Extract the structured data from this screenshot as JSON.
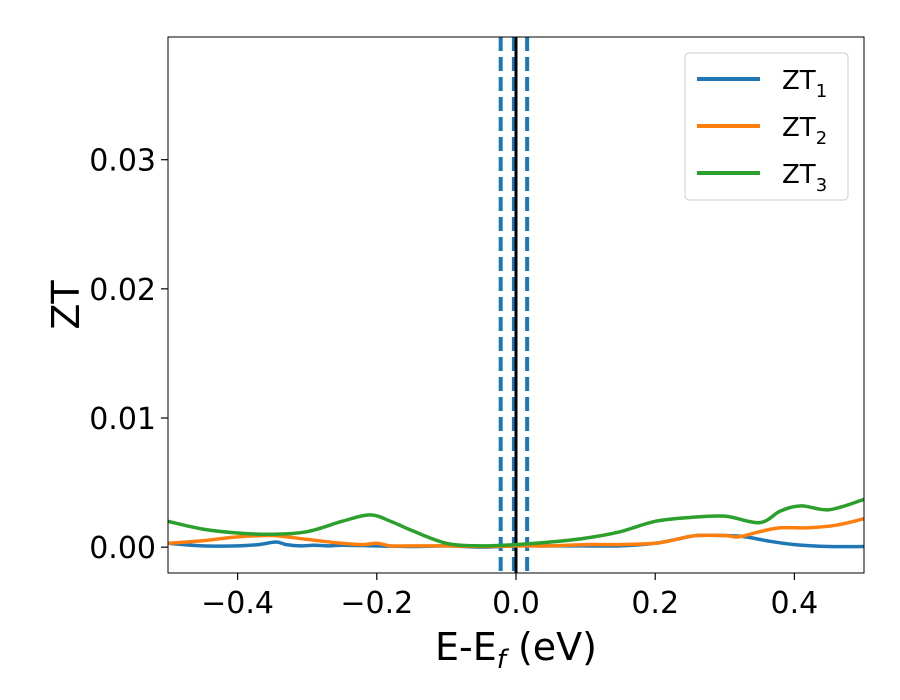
{
  "chart_data": {
    "type": "line",
    "title": "",
    "xlabel": "E-E",
    "xlabel_sub": "f",
    "xlabel_unit": " (eV)",
    "ylabel": "ZT",
    "xlim": [
      -0.5,
      0.5
    ],
    "ylim": [
      -0.002,
      0.0395
    ],
    "xticks": [
      {
        "value": -0.4,
        "label": "−0.4"
      },
      {
        "value": -0.2,
        "label": "−0.2"
      },
      {
        "value": 0.0,
        "label": "0.0"
      },
      {
        "value": 0.2,
        "label": "0.2"
      },
      {
        "value": 0.4,
        "label": "0.4"
      }
    ],
    "yticks": [
      {
        "value": 0.0,
        "label": "0.00"
      },
      {
        "value": 0.01,
        "label": "0.01"
      },
      {
        "value": 0.02,
        "label": "0.02"
      },
      {
        "value": 0.03,
        "label": "0.03"
      }
    ],
    "grid": false,
    "legend": {
      "placement": "top-right"
    },
    "series": [
      {
        "name": "ZT",
        "name_sub": "1",
        "color": "#1f77b4",
        "points": [
          [
            -0.5,
            0.0003
          ],
          [
            -0.45,
            0.0001
          ],
          [
            -0.4,
            0.0001
          ],
          [
            -0.37,
            0.0002
          ],
          [
            -0.345,
            0.0004
          ],
          [
            -0.33,
            0.0002
          ],
          [
            -0.31,
            0.0001
          ],
          [
            -0.29,
            0.00015
          ],
          [
            -0.27,
            0.0001
          ],
          [
            -0.25,
            0.00015
          ],
          [
            -0.2,
            0.0001
          ],
          [
            -0.15,
            5e-05
          ],
          [
            -0.1,
            0.0001
          ],
          [
            -0.05,
            0.0
          ],
          [
            0.0,
            0.0001
          ],
          [
            0.05,
            0.0001
          ],
          [
            0.1,
            0.0001
          ],
          [
            0.15,
            0.0001
          ],
          [
            0.2,
            0.0003
          ],
          [
            0.23,
            0.0006
          ],
          [
            0.26,
            0.0009
          ],
          [
            0.3,
            0.0009
          ],
          [
            0.33,
            0.0008
          ],
          [
            0.36,
            0.0005
          ],
          [
            0.4,
            0.0002
          ],
          [
            0.45,
            5e-05
          ],
          [
            0.5,
            5e-05
          ]
        ]
      },
      {
        "name": "ZT",
        "name_sub": "2",
        "color": "#ff7f0e",
        "points": [
          [
            -0.5,
            0.0003
          ],
          [
            -0.45,
            0.0005
          ],
          [
            -0.4,
            0.0008
          ],
          [
            -0.35,
            0.0009
          ],
          [
            -0.3,
            0.0006
          ],
          [
            -0.25,
            0.0003
          ],
          [
            -0.22,
            0.0002
          ],
          [
            -0.2,
            0.0003
          ],
          [
            -0.18,
            0.0001
          ],
          [
            -0.15,
            0.0001
          ],
          [
            -0.1,
            0.0001
          ],
          [
            -0.05,
            5e-05
          ],
          [
            0.0,
            0.0001
          ],
          [
            0.05,
            0.0001
          ],
          [
            0.1,
            0.0002
          ],
          [
            0.15,
            0.0002
          ],
          [
            0.2,
            0.0003
          ],
          [
            0.23,
            0.0006
          ],
          [
            0.26,
            0.0009
          ],
          [
            0.3,
            0.0009
          ],
          [
            0.32,
            0.0008
          ],
          [
            0.35,
            0.0012
          ],
          [
            0.38,
            0.0015
          ],
          [
            0.42,
            0.0015
          ],
          [
            0.46,
            0.0017
          ],
          [
            0.5,
            0.0022
          ]
        ]
      },
      {
        "name": "ZT",
        "name_sub": "3",
        "color": "#2ca02c",
        "points": [
          [
            -0.5,
            0.002
          ],
          [
            -0.45,
            0.0014
          ],
          [
            -0.4,
            0.0011
          ],
          [
            -0.35,
            0.001
          ],
          [
            -0.3,
            0.0012
          ],
          [
            -0.25,
            0.002
          ],
          [
            -0.21,
            0.0025
          ],
          [
            -0.18,
            0.002
          ],
          [
            -0.15,
            0.0013
          ],
          [
            -0.1,
            0.0003
          ],
          [
            -0.05,
            0.0001
          ],
          [
            0.0,
            0.0002
          ],
          [
            0.05,
            0.0004
          ],
          [
            0.1,
            0.0007
          ],
          [
            0.15,
            0.0012
          ],
          [
            0.2,
            0.002
          ],
          [
            0.25,
            0.0023
          ],
          [
            0.3,
            0.0024
          ],
          [
            0.35,
            0.0019
          ],
          [
            0.38,
            0.0028
          ],
          [
            0.41,
            0.0032
          ],
          [
            0.45,
            0.0029
          ],
          [
            0.5,
            0.0037
          ]
        ]
      }
    ],
    "vlines": [
      {
        "x": -0.022,
        "style": "dashed",
        "color": "#1f77b4"
      },
      {
        "x": -0.003,
        "style": "dashed",
        "color": "#1f77b4"
      },
      {
        "x": 0.016,
        "style": "dashed",
        "color": "#1f77b4"
      },
      {
        "x": 0.0,
        "style": "solid",
        "color": "#000000"
      }
    ]
  }
}
